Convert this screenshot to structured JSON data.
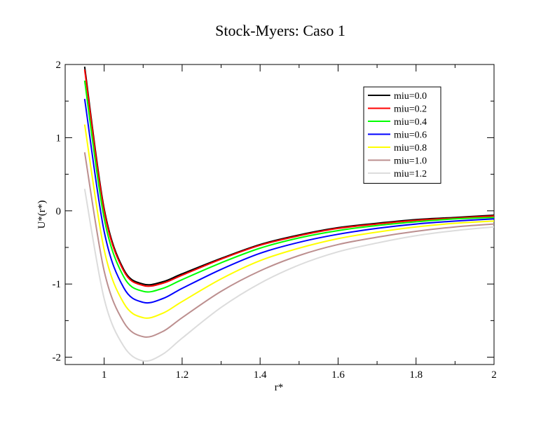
{
  "chart_data": {
    "type": "line",
    "title": "Stock-Myers: Caso 1",
    "xlabel": "r*",
    "ylabel": "U*(r*)",
    "xlim": [
      0.9,
      2.0
    ],
    "ylim": [
      -2.1,
      2.0
    ],
    "x_ticks": [
      1,
      1.2,
      1.4,
      1.6,
      1.8,
      2
    ],
    "x_tick_labels": [
      "1",
      "1.2",
      "1.4",
      "1.6",
      "1.8",
      "2"
    ],
    "y_ticks": [
      -2,
      -1,
      0,
      1,
      2
    ],
    "y_tick_labels": [
      "-2",
      "-1",
      "0",
      "1",
      "2"
    ],
    "grid": false,
    "legend_position": "top-right",
    "x": [
      0.95,
      1.0,
      1.05,
      1.1,
      1.15,
      1.2,
      1.3,
      1.4,
      1.5,
      1.6,
      1.7,
      1.8,
      1.9,
      2.0
    ],
    "series": [
      {
        "name": "miu=0.0",
        "color": "#000000",
        "values": [
          1.97,
          0.03,
          -0.8,
          -1.0,
          -0.97,
          -0.86,
          -0.65,
          -0.46,
          -0.33,
          -0.23,
          -0.17,
          -0.12,
          -0.09,
          -0.06
        ]
      },
      {
        "name": "miu=0.2",
        "color": "#ff0000",
        "values": [
          1.93,
          0.0,
          -0.82,
          -1.02,
          -0.99,
          -0.88,
          -0.66,
          -0.47,
          -0.34,
          -0.24,
          -0.18,
          -0.13,
          -0.1,
          -0.07
        ]
      },
      {
        "name": "miu=0.4",
        "color": "#00ff00",
        "values": [
          1.78,
          -0.1,
          -0.9,
          -1.1,
          -1.06,
          -0.94,
          -0.71,
          -0.51,
          -0.37,
          -0.27,
          -0.2,
          -0.15,
          -0.11,
          -0.09
        ]
      },
      {
        "name": "miu=0.6",
        "color": "#0000ff",
        "values": [
          1.53,
          -0.28,
          -1.05,
          -1.25,
          -1.2,
          -1.06,
          -0.8,
          -0.58,
          -0.43,
          -0.32,
          -0.24,
          -0.18,
          -0.14,
          -0.11
        ]
      },
      {
        "name": "miu=0.8",
        "color": "#ffff00",
        "values": [
          1.18,
          -0.53,
          -1.26,
          -1.46,
          -1.4,
          -1.24,
          -0.93,
          -0.68,
          -0.51,
          -0.38,
          -0.29,
          -0.22,
          -0.17,
          -0.14
        ]
      },
      {
        "name": "miu=1.0",
        "color": "#bc8f8f",
        "values": [
          0.8,
          -0.82,
          -1.52,
          -1.72,
          -1.65,
          -1.46,
          -1.1,
          -0.82,
          -0.61,
          -0.46,
          -0.36,
          -0.28,
          -0.22,
          -0.18
        ]
      },
      {
        "name": "miu=1.2",
        "color": "#dcdcdc",
        "values": [
          0.3,
          -1.2,
          -1.85,
          -2.05,
          -1.96,
          -1.74,
          -1.32,
          -0.99,
          -0.74,
          -0.56,
          -0.44,
          -0.34,
          -0.27,
          -0.22
        ]
      }
    ]
  }
}
